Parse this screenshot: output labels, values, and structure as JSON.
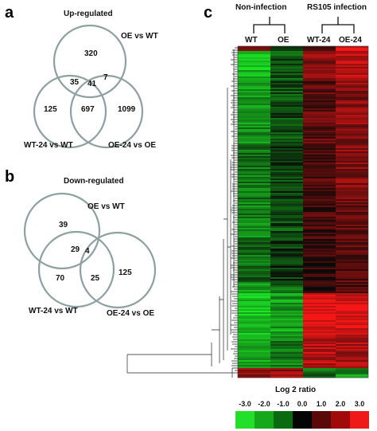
{
  "panel_a": {
    "letter": "a",
    "title": "Up-regulated",
    "labels": {
      "top": "OE vs WT",
      "left": "WT-24 vs WT",
      "right": "OE-24 vs OE"
    },
    "counts": {
      "top_only": "320",
      "top_left": "35",
      "center": "41",
      "top_right": "7",
      "left_only": "125",
      "left_right": "697",
      "right_only": "1099"
    }
  },
  "panel_b": {
    "letter": "b",
    "title": "Down-regulated",
    "labels": {
      "top": "OE vs WT",
      "left": "WT-24 vs WT",
      "right": "OE-24 vs OE"
    },
    "counts": {
      "top_only": "39",
      "top_left": "29",
      "center": "4",
      "left_only": "70",
      "left_right": "25",
      "right_only": "125"
    }
  },
  "panel_c": {
    "letter": "c",
    "group_non_infection": "Non-infection",
    "group_infection": "RS105 infection",
    "columns": [
      "WT",
      "OE",
      "WT-24",
      "OE-24"
    ],
    "scale_title": "Log 2 ratio",
    "scale_ticks": [
      "-3.0",
      "-2.0",
      "-1.0",
      "0.0",
      "1.0",
      "2.0",
      "3.0"
    ],
    "scale_colors": [
      "#22e02a",
      "#14a81a",
      "#0a6a10",
      "#050505",
      "#5a0808",
      "#a00a0a",
      "#ee1a1a"
    ]
  }
}
